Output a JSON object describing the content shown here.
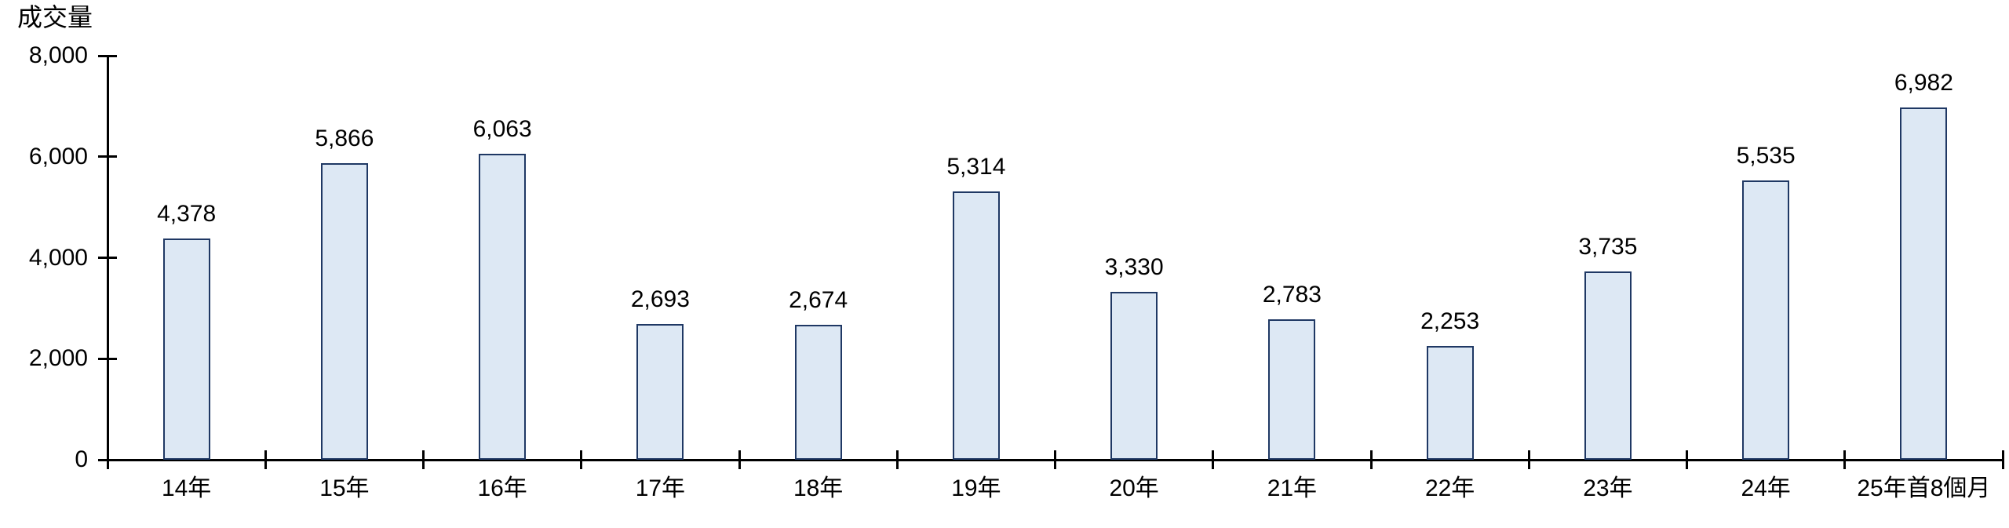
{
  "chart_data": {
    "type": "bar",
    "title": "",
    "ylabel": "成交量",
    "xlabel": "",
    "categories": [
      "14年",
      "15年",
      "16年",
      "17年",
      "18年",
      "19年",
      "20年",
      "21年",
      "22年",
      "23年",
      "24年",
      "25年首8個月"
    ],
    "values": [
      4378,
      5866,
      6063,
      2693,
      2674,
      5314,
      3330,
      2783,
      2253,
      3735,
      5535,
      6982
    ],
    "value_labels": [
      "4,378",
      "5,866",
      "6,063",
      "2,693",
      "2,674",
      "5,314",
      "3,330",
      "2,783",
      "2,253",
      "3,735",
      "5,535",
      "6,982"
    ],
    "y_tick_labels": [
      "0",
      "2,000",
      "4,000",
      "6,000",
      "8,000"
    ],
    "y_tick_values": [
      0,
      2000,
      4000,
      6000,
      8000
    ],
    "ylim": [
      0,
      8000
    ],
    "grid": false,
    "legend": "none",
    "colors": {
      "bar_fill": "#dde8f4",
      "bar_border": "#1f3864",
      "axis": "#000000",
      "text": "#000000"
    }
  }
}
